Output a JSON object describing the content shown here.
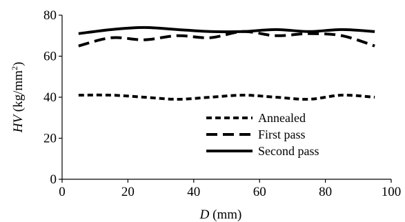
{
  "chart_data": {
    "type": "line",
    "title": "",
    "xlabel": {
      "italic": "D",
      "rest": " (mm)"
    },
    "ylabel": {
      "italic": "HV",
      "rest": " (kg/mm",
      "sup": "2",
      "close": ")"
    },
    "xlim": [
      0,
      100
    ],
    "ylim": [
      0,
      80
    ],
    "xticks": [
      "0",
      "20",
      "40",
      "60",
      "80",
      "100"
    ],
    "yticks": [
      "0",
      "20",
      "40",
      "60",
      "80"
    ],
    "grid": false,
    "legend_position": "lower-right",
    "series": [
      {
        "name": "Annealed",
        "style": "dotted-dash",
        "color": "#000000",
        "x": [
          5,
          15,
          25,
          35,
          45,
          55,
          65,
          75,
          85,
          95
        ],
        "y": [
          41,
          41,
          40,
          39,
          40,
          41,
          40,
          39,
          41,
          40
        ]
      },
      {
        "name": "First pass",
        "style": "long-dash",
        "color": "#000000",
        "x": [
          5,
          15,
          25,
          35,
          45,
          55,
          65,
          75,
          85,
          95
        ],
        "y": [
          65,
          69,
          68,
          70,
          69,
          72,
          70,
          71,
          70,
          65
        ]
      },
      {
        "name": "Second pass",
        "style": "solid",
        "color": "#000000",
        "x": [
          5,
          15,
          25,
          35,
          45,
          55,
          65,
          75,
          85,
          95
        ],
        "y": [
          71,
          73,
          74,
          73,
          72,
          72,
          73,
          72,
          73,
          72
        ]
      }
    ]
  }
}
